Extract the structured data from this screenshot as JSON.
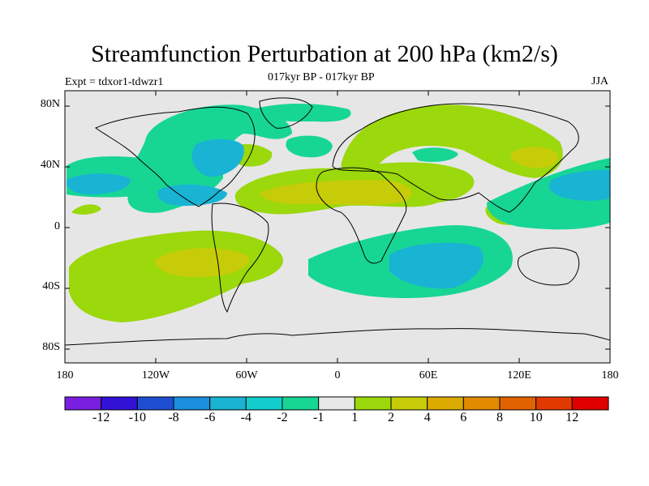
{
  "title": "Streamfunction Perturbation at 200 hPa (km2/s)",
  "subtitle": "017kyr BP - 017kyr BP",
  "expt_label": "Expt = tdxor1-tdwzr1",
  "season": "JJA",
  "map": {
    "y_ticks": [
      "80N",
      "40N",
      "0",
      "40S",
      "80S"
    ],
    "x_ticks": [
      "180",
      "120W",
      "60W",
      "0",
      "60E",
      "120E",
      "180"
    ]
  },
  "colorbar": {
    "colors": [
      "#7a1fe0",
      "#3213d6",
      "#1e4fd2",
      "#1a8fdb",
      "#19b3d4",
      "#13cdcc",
      "#17d694",
      "#e8e8e8",
      "#9bd80c",
      "#c6cc08",
      "#dbab00",
      "#e28a00",
      "#e16300",
      "#e03a00",
      "#e00000"
    ],
    "labels": [
      "-12",
      "-10",
      "-8",
      "-6",
      "-4",
      "-2",
      "-1",
      "1",
      "2",
      "4",
      "6",
      "8",
      "10",
      "12"
    ]
  },
  "fills": {
    "background": "#e6e6e6",
    "level_pos1": "#9bd80c",
    "level_pos2": "#c6cc08",
    "level_neg1": "#17d694",
    "level_neg2": "#19b3d4"
  }
}
